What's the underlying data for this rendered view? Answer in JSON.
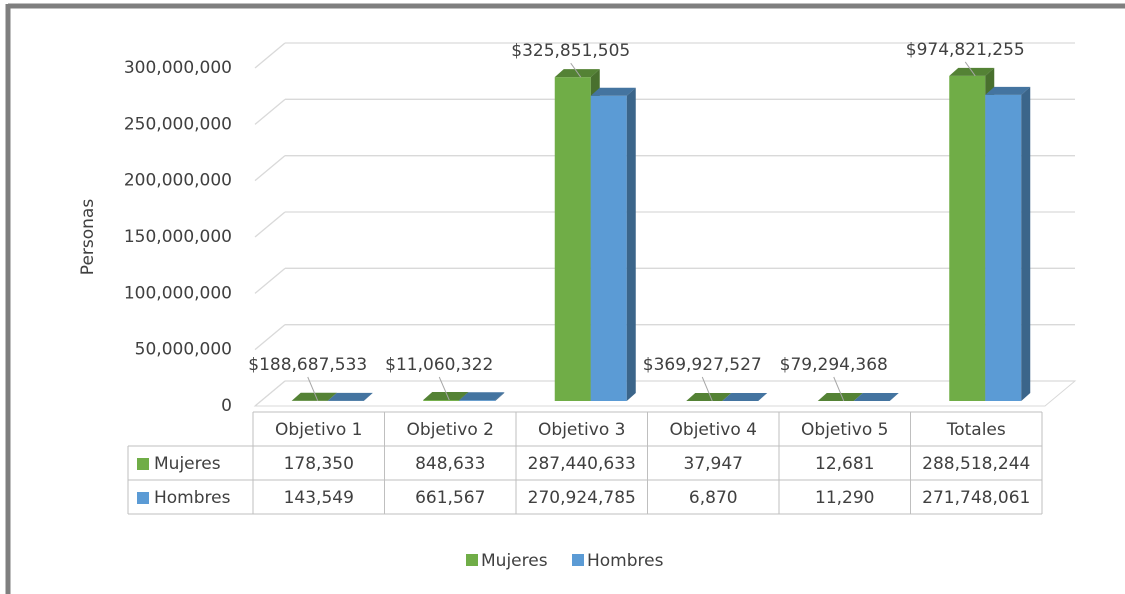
{
  "chart_data": {
    "type": "bar3d",
    "y_axis_label": "Personas",
    "categories": [
      "Objetivo 1",
      "Objetivo 2",
      "Objetivo 3",
      "Objetivo 4",
      "Objetivo 5",
      "Totales"
    ],
    "series": [
      {
        "name": "Mujeres",
        "color": "#70ad47",
        "values": [
          178350,
          848633,
          287440633,
          37947,
          12681,
          288518244
        ],
        "value_labels": [
          "178,350",
          "848,633",
          "287,440,633",
          "37,947",
          "12,681",
          "288,518,244"
        ]
      },
      {
        "name": "Hombres",
        "color": "#5b9bd5",
        "values": [
          143549,
          661567,
          270924785,
          6870,
          11290,
          271748061
        ],
        "value_labels": [
          "143,549",
          "661,567",
          "270,924,785",
          "6,870",
          "11,290",
          "271,748,061"
        ]
      }
    ],
    "annotations": [
      "$188,687,533",
      "$11,060,322",
      "$325,851,505",
      "$369,927,527",
      "$79,294,368",
      "$974,821,255"
    ],
    "ylim": [
      0,
      300000000
    ],
    "yticks": [
      0,
      {
        "value": 50000000,
        "label": "50,000,000"
      },
      {
        "value": 100000000,
        "label": "100,000,000"
      },
      {
        "value": 150000000,
        "label": "150,000,000"
      },
      {
        "value": 200000000,
        "label": "200,000,000"
      },
      {
        "value": 250000000,
        "label": "250,000,000"
      },
      {
        "value": 300000000,
        "label": "300,000,000"
      }
    ],
    "grid": true,
    "legend": "bottom"
  }
}
